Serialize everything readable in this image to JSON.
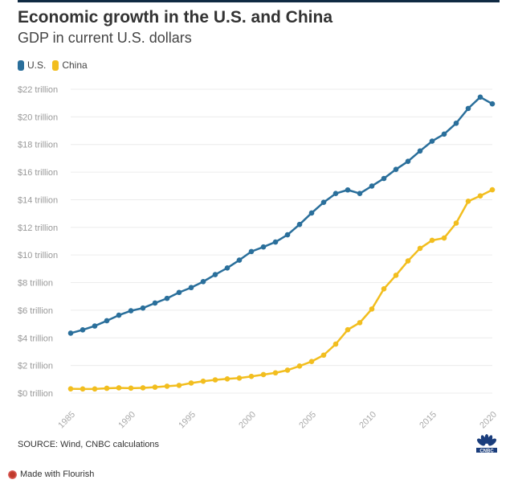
{
  "chart_data": {
    "type": "line",
    "title": "Economic growth in the U.S. and China",
    "subtitle": "GDP in current U.S. dollars",
    "x": [
      1985,
      1986,
      1987,
      1988,
      1989,
      1990,
      1991,
      1992,
      1993,
      1994,
      1995,
      1996,
      1997,
      1998,
      1999,
      2000,
      2001,
      2002,
      2003,
      2004,
      2005,
      2006,
      2007,
      2008,
      2009,
      2010,
      2011,
      2012,
      2013,
      2014,
      2015,
      2016,
      2017,
      2018,
      2019,
      2020
    ],
    "series": [
      {
        "name": "U.S.",
        "color": "#2a6f9b",
        "values": [
          4.34,
          4.58,
          4.86,
          5.24,
          5.64,
          5.96,
          6.16,
          6.52,
          6.86,
          7.29,
          7.64,
          8.07,
          8.58,
          9.06,
          9.63,
          10.25,
          10.58,
          10.94,
          11.46,
          12.21,
          13.04,
          13.81,
          14.45,
          14.71,
          14.45,
          14.99,
          15.54,
          16.2,
          16.78,
          17.53,
          18.24,
          18.75,
          19.54,
          20.61,
          21.43,
          20.94
        ]
      },
      {
        "name": "China",
        "color": "#f2be1f",
        "values": [
          0.31,
          0.3,
          0.3,
          0.35,
          0.38,
          0.36,
          0.38,
          0.43,
          0.5,
          0.56,
          0.73,
          0.86,
          0.96,
          1.03,
          1.09,
          1.21,
          1.34,
          1.47,
          1.66,
          1.96,
          2.29,
          2.75,
          3.55,
          4.59,
          5.1,
          6.09,
          7.55,
          8.53,
          9.57,
          10.48,
          11.06,
          11.23,
          12.31,
          13.89,
          14.28,
          14.72
        ]
      }
    ],
    "yticks": [
      0,
      2,
      4,
      6,
      8,
      10,
      12,
      14,
      16,
      18,
      20,
      22
    ],
    "ytick_labels": [
      "$0 trillion",
      "$2 trillion",
      "$4 trillion",
      "$6 trillion",
      "$8 trillion",
      "$10 trillion",
      "$12 trillion",
      "$14 trillion",
      "$16 trillion",
      "$18 trillion",
      "$20 trillion",
      "$22 trillion"
    ],
    "xticks": [
      1985,
      1990,
      1995,
      2000,
      2005,
      2010,
      2015,
      2020
    ],
    "xtick_labels": [
      "1985",
      "1990",
      "1995",
      "2000",
      "2005",
      "2010",
      "2015",
      "2020"
    ],
    "ylim": [
      0,
      22
    ],
    "xlim": [
      1985,
      2020
    ],
    "grid": true,
    "legend": "top-left"
  },
  "footer": {
    "source": "SOURCE: Wind, CNBC calculations",
    "logo": "CNBC",
    "flourish": "Made with Flourish"
  }
}
